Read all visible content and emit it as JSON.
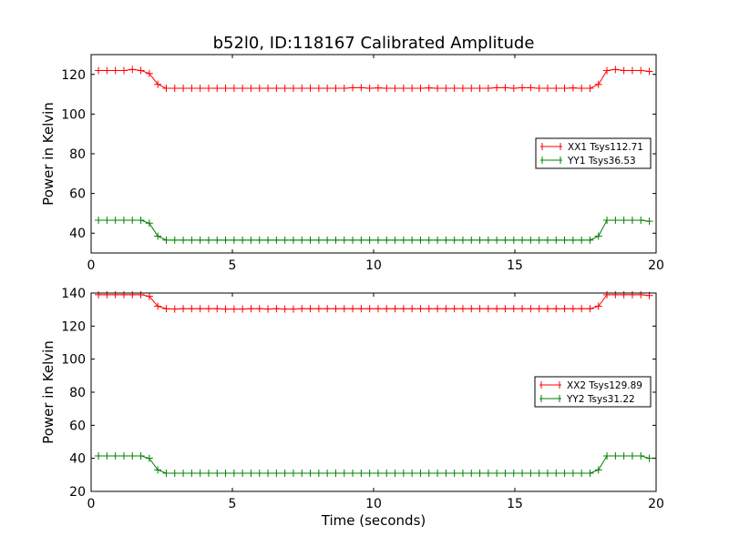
{
  "title": "b52l0, ID:118167 Calibrated Amplitude",
  "chart_data": [
    {
      "type": "line",
      "title": "b52l0, ID:118167 Calibrated Amplitude",
      "xlabel": "",
      "ylabel": "Power in Kelvin",
      "xlim": [
        0,
        20
      ],
      "ylim": [
        30,
        130
      ],
      "xticks": [
        0,
        5,
        10,
        15,
        20
      ],
      "yticks": [
        40,
        60,
        80,
        100,
        120
      ],
      "legend_placement": "center-right",
      "x_start": 0.26,
      "x_step": 0.3,
      "series": [
        {
          "name": "XX1 Tsys112.71",
          "color": "#ff0000",
          "values": [
            122,
            122,
            122,
            122,
            122.5,
            122,
            120.5,
            115,
            113,
            113,
            113,
            113,
            113,
            113,
            113,
            113,
            113,
            113,
            113,
            113,
            113,
            113,
            113,
            113,
            113,
            113,
            113,
            113,
            113,
            113,
            113.3,
            113.3,
            113,
            113.2,
            113,
            113,
            113,
            113,
            113,
            113.2,
            113,
            113,
            113,
            113,
            113,
            113,
            113,
            113.3,
            113.3,
            113,
            113.3,
            113.3,
            113,
            113,
            113,
            113,
            113.2,
            113,
            113,
            115,
            122,
            122.5,
            122,
            122,
            122,
            121.5
          ]
        },
        {
          "name": "YY1 Tsys36.53",
          "color": "#008000",
          "values": [
            46.5,
            46.5,
            46.5,
            46.5,
            46.5,
            46.5,
            45,
            38.5,
            36.5,
            36.5,
            36.5,
            36.5,
            36.5,
            36.5,
            36.5,
            36.5,
            36.5,
            36.5,
            36.5,
            36.5,
            36.5,
            36.5,
            36.5,
            36.5,
            36.5,
            36.5,
            36.5,
            36.5,
            36.5,
            36.5,
            36.5,
            36.5,
            36.5,
            36.5,
            36.5,
            36.5,
            36.5,
            36.5,
            36.5,
            36.5,
            36.5,
            36.5,
            36.5,
            36.5,
            36.5,
            36.5,
            36.5,
            36.5,
            36.5,
            36.5,
            36.5,
            36.5,
            36.5,
            36.5,
            36.5,
            36.5,
            36.5,
            36.5,
            36.5,
            38.5,
            46.5,
            46.5,
            46.5,
            46.5,
            46.5,
            46
          ]
        }
      ]
    },
    {
      "type": "line",
      "xlabel": "Time (seconds)",
      "ylabel": "Power in Kelvin",
      "xlim": [
        0,
        20
      ],
      "ylim": [
        20,
        140
      ],
      "xticks": [
        0,
        5,
        10,
        15,
        20
      ],
      "yticks": [
        20,
        40,
        60,
        80,
        100,
        120,
        140
      ],
      "legend_placement": "center-right",
      "x_start": 0.26,
      "x_step": 0.3,
      "series": [
        {
          "name": "XX2 Tsys129.89",
          "color": "#ff0000",
          "values": [
            139,
            139,
            139,
            139,
            139,
            139,
            138,
            132,
            130.5,
            130.3,
            130.5,
            130.5,
            130.5,
            130.5,
            130.5,
            130.3,
            130.3,
            130.3,
            130.5,
            130.5,
            130.3,
            130.5,
            130.3,
            130.3,
            130.5,
            130.5,
            130.5,
            130.5,
            130.5,
            130.5,
            130.5,
            130.5,
            130.5,
            130.5,
            130.5,
            130.5,
            130.5,
            130.5,
            130.5,
            130.5,
            130.5,
            130.5,
            130.5,
            130.5,
            130.5,
            130.5,
            130.5,
            130.5,
            130.5,
            130.5,
            130.5,
            130.5,
            130.5,
            130.5,
            130.5,
            130.5,
            130.5,
            130.5,
            130.5,
            132,
            139,
            139,
            139,
            139,
            139,
            138.5
          ]
        },
        {
          "name": "YY2 Tsys31.22",
          "color": "#008000",
          "values": [
            41.5,
            41.5,
            41.5,
            41.5,
            41.5,
            41.5,
            40,
            33,
            31,
            31,
            31,
            31,
            31,
            31,
            31,
            31,
            31,
            31,
            31,
            31,
            31,
            31,
            31,
            31,
            31,
            31,
            31,
            31,
            31,
            31,
            31,
            31,
            31,
            31,
            31,
            31,
            31,
            31,
            31,
            31,
            31,
            31,
            31,
            31,
            31,
            31,
            31,
            31,
            31,
            31,
            31,
            31,
            31,
            31,
            31,
            31,
            31,
            31,
            31,
            33,
            41.5,
            41.5,
            41.5,
            41.5,
            41.5,
            40
          ]
        }
      ]
    }
  ]
}
